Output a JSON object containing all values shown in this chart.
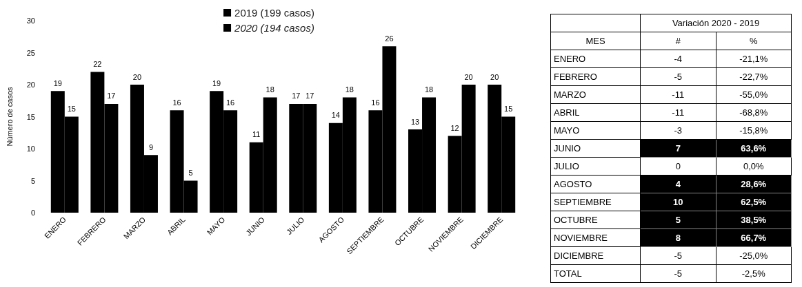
{
  "chart_data": [
    {
      "type": "bar",
      "ylabel": "Número de casos",
      "categories": [
        "ENERO",
        "FEBRERO",
        "MARZO",
        "ABRIL",
        "MAYO",
        "JUNIO",
        "JULIO",
        "AGOSTO",
        "SEPTIEMBRE",
        "OCTUBRE",
        "NOVIEMBRE",
        "DICIEMBRE"
      ],
      "series": [
        {
          "name": "2019 (199 casos)",
          "color": "#000000",
          "values": [
            19,
            22,
            20,
            16,
            19,
            11,
            17,
            14,
            16,
            13,
            12,
            20
          ]
        },
        {
          "name": "2020 (194 casos)",
          "color": "#000000",
          "values": [
            15,
            17,
            9,
            5,
            16,
            18,
            17,
            18,
            26,
            18,
            20,
            15
          ]
        }
      ],
      "ylim": [
        0,
        30
      ],
      "yticks": [
        0,
        5,
        10,
        15,
        20,
        25,
        30
      ],
      "data_labels": true,
      "legend": "top"
    },
    {
      "type": "other",
      "title": "Variación 2020 - 2019",
      "xlabel": "MES",
      "data_labels": true,
      "categories": [
        "ENERO",
        "FEBRERO",
        "MARZO",
        "ABRIL",
        "MAYO",
        "JUNIO",
        "JULIO",
        "AGOSTO",
        "SEPTIEMBRE",
        "OCTUBRE",
        "NOVIEMBRE",
        "DICIEMBRE",
        "TOTAL"
      ],
      "series": [
        {
          "name": "#",
          "values": [
            -4,
            -5,
            -11,
            -11,
            -3,
            7,
            0,
            4,
            10,
            5,
            8,
            -5,
            -5
          ],
          "colors": [
            "#ffffff",
            "#ffffff",
            "#ffffff",
            "#ffffff",
            "#ffffff",
            "#000000",
            "#ffffff",
            "#000000",
            "#000000",
            "#000000",
            "#000000",
            "#ffffff",
            "#ffffff"
          ]
        },
        {
          "name": "%",
          "values": [
            -21.1,
            -22.7,
            -55.0,
            -68.8,
            -15.8,
            63.6,
            0.0,
            28.6,
            62.5,
            38.5,
            66.7,
            -25.0,
            -2.5
          ],
          "value_labels": [
            "-21,1%",
            "-22,7%",
            "-55,0%",
            "-68,8%",
            "-15,8%",
            "63,6%",
            "0,0%",
            "28,6%",
            "62,5%",
            "38,5%",
            "66,7%",
            "-25,0%",
            "-2,5%"
          ],
          "colors": [
            "#ffffff",
            "#ffffff",
            "#ffffff",
            "#ffffff",
            "#ffffff",
            "#000000",
            "#ffffff",
            "#000000",
            "#000000",
            "#000000",
            "#000000",
            "#ffffff",
            "#ffffff"
          ]
        }
      ]
    }
  ]
}
